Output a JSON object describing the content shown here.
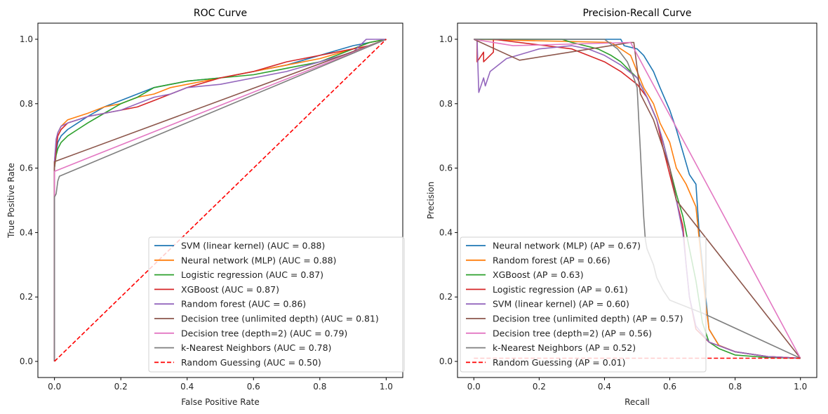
{
  "chart_data": [
    {
      "type": "line",
      "title": "ROC Curve",
      "xlabel": "False Positive Rate",
      "ylabel": "True Positive Rate",
      "xlim": [
        -0.05,
        1.05
      ],
      "ylim": [
        -0.05,
        1.05
      ],
      "xticks": [
        "0.0",
        "0.2",
        "0.4",
        "0.6",
        "0.8",
        "1.0"
      ],
      "yticks": [
        "0.0",
        "0.2",
        "0.4",
        "0.6",
        "0.8",
        "1.0"
      ],
      "grid": false,
      "legend_position": "lower-right",
      "series": [
        {
          "name": "SVM (linear kernel) (AUC = 0.88)",
          "color": "#1f77b4",
          "dash": false,
          "x": [
            0,
            0,
            0.005,
            0.01,
            0.02,
            0.04,
            0.07,
            0.1,
            0.15,
            0.2,
            0.25,
            0.3,
            0.35,
            0.4,
            0.5,
            0.6,
            0.7,
            0.8,
            0.9,
            0.95,
            1.0
          ],
          "y": [
            0,
            0.6,
            0.65,
            0.68,
            0.7,
            0.72,
            0.74,
            0.76,
            0.79,
            0.81,
            0.83,
            0.85,
            0.86,
            0.87,
            0.88,
            0.9,
            0.92,
            0.95,
            0.98,
            0.99,
            1.0
          ]
        },
        {
          "name": "Neural network (MLP) (AUC = 0.88)",
          "color": "#ff7f0e",
          "dash": false,
          "x": [
            0,
            0,
            0.005,
            0.01,
            0.02,
            0.04,
            0.07,
            0.1,
            0.15,
            0.2,
            0.25,
            0.3,
            0.35,
            0.4,
            0.5,
            0.6,
            0.7,
            0.8,
            0.9,
            0.95,
            1.0
          ],
          "y": [
            0,
            0.62,
            0.68,
            0.71,
            0.73,
            0.75,
            0.76,
            0.77,
            0.79,
            0.8,
            0.82,
            0.83,
            0.85,
            0.86,
            0.88,
            0.9,
            0.92,
            0.94,
            0.97,
            0.99,
            1.0
          ]
        },
        {
          "name": "Logistic regression (AUC = 0.87)",
          "color": "#2ca02c",
          "dash": false,
          "x": [
            0,
            0,
            0.005,
            0.01,
            0.02,
            0.04,
            0.07,
            0.1,
            0.15,
            0.2,
            0.25,
            0.3,
            0.35,
            0.4,
            0.5,
            0.6,
            0.7,
            0.8,
            0.9,
            0.95,
            1.0
          ],
          "y": [
            0,
            0.6,
            0.64,
            0.66,
            0.68,
            0.7,
            0.72,
            0.74,
            0.77,
            0.8,
            0.82,
            0.85,
            0.86,
            0.87,
            0.88,
            0.89,
            0.91,
            0.93,
            0.97,
            0.99,
            1.0
          ]
        },
        {
          "name": "XGBoost (AUC = 0.87)",
          "color": "#d62728",
          "dash": false,
          "x": [
            0,
            0,
            0.005,
            0.01,
            0.02,
            0.04,
            0.07,
            0.1,
            0.15,
            0.2,
            0.25,
            0.3,
            0.35,
            0.4,
            0.5,
            0.6,
            0.7,
            0.8,
            0.9,
            0.95,
            1.0
          ],
          "y": [
            0,
            0.6,
            0.66,
            0.7,
            0.72,
            0.74,
            0.75,
            0.76,
            0.77,
            0.78,
            0.79,
            0.81,
            0.83,
            0.85,
            0.88,
            0.9,
            0.93,
            0.95,
            0.97,
            0.98,
            1.0
          ]
        },
        {
          "name": "Random forest (AUC = 0.86)",
          "color": "#9467bd",
          "dash": false,
          "x": [
            0,
            0,
            0.005,
            0.01,
            0.02,
            0.04,
            0.07,
            0.1,
            0.15,
            0.2,
            0.25,
            0.3,
            0.35,
            0.4,
            0.5,
            0.6,
            0.7,
            0.8,
            0.9,
            0.94,
            1.0
          ],
          "y": [
            0,
            0.62,
            0.69,
            0.71,
            0.73,
            0.74,
            0.75,
            0.76,
            0.77,
            0.78,
            0.8,
            0.82,
            0.83,
            0.85,
            0.86,
            0.88,
            0.9,
            0.93,
            0.96,
            1.0,
            1.0
          ]
        },
        {
          "name": "Decision tree (unlimited depth) (AUC = 0.81)",
          "color": "#8c564b",
          "dash": false,
          "x": [
            0,
            0,
            1.0
          ],
          "y": [
            0,
            0.62,
            1.0
          ]
        },
        {
          "name": "Decision tree (depth=2) (AUC = 0.79)",
          "color": "#e377c2",
          "dash": false,
          "x": [
            0,
            0,
            0,
            1.0
          ],
          "y": [
            0,
            0.52,
            0.59,
            1.0
          ]
        },
        {
          "name": "k-Nearest Neighbors (AUC = 0.78)",
          "color": "#7f7f7f",
          "dash": false,
          "x": [
            0,
            0,
            0.005,
            0.01,
            0.015,
            1.0
          ],
          "y": [
            0,
            0.51,
            0.52,
            0.56,
            0.575,
            1.0
          ]
        },
        {
          "name": "Random Guessing (AUC = 0.50)",
          "color": "#ff0000",
          "dash": true,
          "x": [
            0,
            1
          ],
          "y": [
            0,
            1
          ]
        }
      ]
    },
    {
      "type": "line",
      "title": "Precision-Recall Curve",
      "xlabel": "Recall",
      "ylabel": "Precision",
      "xlim": [
        -0.05,
        1.05
      ],
      "ylim": [
        -0.05,
        1.05
      ],
      "xticks": [
        "0.0",
        "0.2",
        "0.4",
        "0.6",
        "0.8",
        "1.0"
      ],
      "yticks": [
        "0.0",
        "0.2",
        "0.4",
        "0.6",
        "0.8",
        "1.0"
      ],
      "grid": false,
      "legend_position": "lower-left",
      "series": [
        {
          "name": "Neural network (MLP) (AP = 0.67)",
          "color": "#1f77b4",
          "dash": false,
          "x": [
            0,
            0.45,
            0.46,
            0.5,
            0.52,
            0.55,
            0.57,
            0.6,
            0.62,
            0.64,
            0.66,
            0.68,
            0.69,
            0.7,
            0.71,
            0.72,
            0.75,
            0.8,
            0.9,
            1.0
          ],
          "y": [
            1.0,
            1.0,
            0.98,
            0.97,
            0.95,
            0.9,
            0.85,
            0.78,
            0.72,
            0.65,
            0.58,
            0.55,
            0.4,
            0.3,
            0.2,
            0.1,
            0.05,
            0.03,
            0.015,
            0.01
          ]
        },
        {
          "name": "Random forest (AP = 0.66)",
          "color": "#ff7f0e",
          "dash": false,
          "x": [
            0,
            0.42,
            0.45,
            0.48,
            0.5,
            0.52,
            0.55,
            0.57,
            0.6,
            0.62,
            0.65,
            0.68,
            0.69,
            0.7,
            0.71,
            0.72,
            0.75,
            0.8,
            0.9,
            1.0
          ],
          "y": [
            1.0,
            0.99,
            0.97,
            0.95,
            0.9,
            0.85,
            0.8,
            0.74,
            0.68,
            0.6,
            0.55,
            0.48,
            0.38,
            0.28,
            0.18,
            0.1,
            0.05,
            0.03,
            0.015,
            0.01
          ]
        },
        {
          "name": "XGBoost (AP = 0.63)",
          "color": "#2ca02c",
          "dash": false,
          "x": [
            0,
            0.27,
            0.3,
            0.38,
            0.42,
            0.45,
            0.5,
            0.53,
            0.56,
            0.58,
            0.6,
            0.62,
            0.64,
            0.66,
            0.68,
            0.7,
            0.72,
            0.75,
            0.8,
            0.9,
            1.0
          ],
          "y": [
            1.0,
            1.0,
            0.99,
            0.97,
            0.95,
            0.93,
            0.88,
            0.82,
            0.75,
            0.68,
            0.6,
            0.52,
            0.45,
            0.35,
            0.25,
            0.12,
            0.06,
            0.04,
            0.02,
            0.012,
            0.01
          ]
        },
        {
          "name": "Logistic regression (AP = 0.61)",
          "color": "#d62728",
          "dash": false,
          "x": [
            0,
            0.01,
            0.01,
            0.03,
            0.03,
            0.06,
            0.06,
            0.3,
            0.35,
            0.4,
            0.45,
            0.5,
            0.53,
            0.56,
            0.58,
            0.6,
            0.62,
            0.64,
            0.65,
            0.66,
            0.68,
            0.72,
            0.8,
            0.9,
            1.0
          ],
          "y": [
            1.0,
            1.0,
            0.93,
            0.96,
            0.93,
            0.96,
            1.0,
            0.97,
            0.95,
            0.93,
            0.9,
            0.86,
            0.82,
            0.75,
            0.66,
            0.58,
            0.5,
            0.42,
            0.3,
            0.2,
            0.1,
            0.06,
            0.03,
            0.015,
            0.01
          ]
        },
        {
          "name": "SVM (linear kernel) (AP = 0.60)",
          "color": "#9467bd",
          "dash": false,
          "x": [
            0,
            0.01,
            0.015,
            0.03,
            0.035,
            0.05,
            0.1,
            0.2,
            0.3,
            0.35,
            0.4,
            0.45,
            0.5,
            0.53,
            0.56,
            0.58,
            0.6,
            0.62,
            0.64,
            0.65,
            0.66,
            0.68,
            0.72,
            0.8,
            0.9,
            1.0
          ],
          "y": [
            1.0,
            1.0,
            0.835,
            0.88,
            0.855,
            0.9,
            0.94,
            0.97,
            0.98,
            0.97,
            0.95,
            0.92,
            0.88,
            0.82,
            0.75,
            0.68,
            0.6,
            0.5,
            0.4,
            0.3,
            0.2,
            0.11,
            0.06,
            0.03,
            0.015,
            0.01
          ]
        },
        {
          "name": "Decision tree (unlimited depth) (AP = 0.57)",
          "color": "#8c564b",
          "dash": false,
          "x": [
            0,
            0.14,
            0.48,
            0.49,
            0.51,
            0.55,
            0.6,
            0.62,
            1.0
          ],
          "y": [
            1.0,
            0.935,
            0.99,
            0.99,
            0.83,
            0.75,
            0.6,
            0.5,
            0.01
          ]
        },
        {
          "name": "Decision tree (depth=2) (AP = 0.56)",
          "color": "#e377c2",
          "dash": false,
          "x": [
            0,
            0.12,
            0.48,
            1.0
          ],
          "y": [
            1.0,
            0.98,
            0.99,
            0.01
          ]
        },
        {
          "name": "k-Nearest Neighbors (AP = 0.52)",
          "color": "#7f7f7f",
          "dash": false,
          "x": [
            0,
            0.4,
            0.44,
            0.47,
            0.49,
            0.5,
            0.505,
            0.51,
            0.515,
            0.52,
            0.525,
            0.53,
            0.55,
            0.56,
            0.58,
            0.6,
            0.7,
            1.0
          ],
          "y": [
            1.0,
            1.0,
            0.97,
            0.93,
            0.88,
            0.85,
            0.75,
            0.65,
            0.55,
            0.45,
            0.38,
            0.35,
            0.3,
            0.26,
            0.22,
            0.19,
            0.15,
            0.01
          ]
        },
        {
          "name": "Random Guessing (AP = 0.01)",
          "color": "#ff0000",
          "dash": true,
          "x": [
            0,
            1
          ],
          "y": [
            0.01,
            0.01
          ]
        }
      ]
    }
  ]
}
